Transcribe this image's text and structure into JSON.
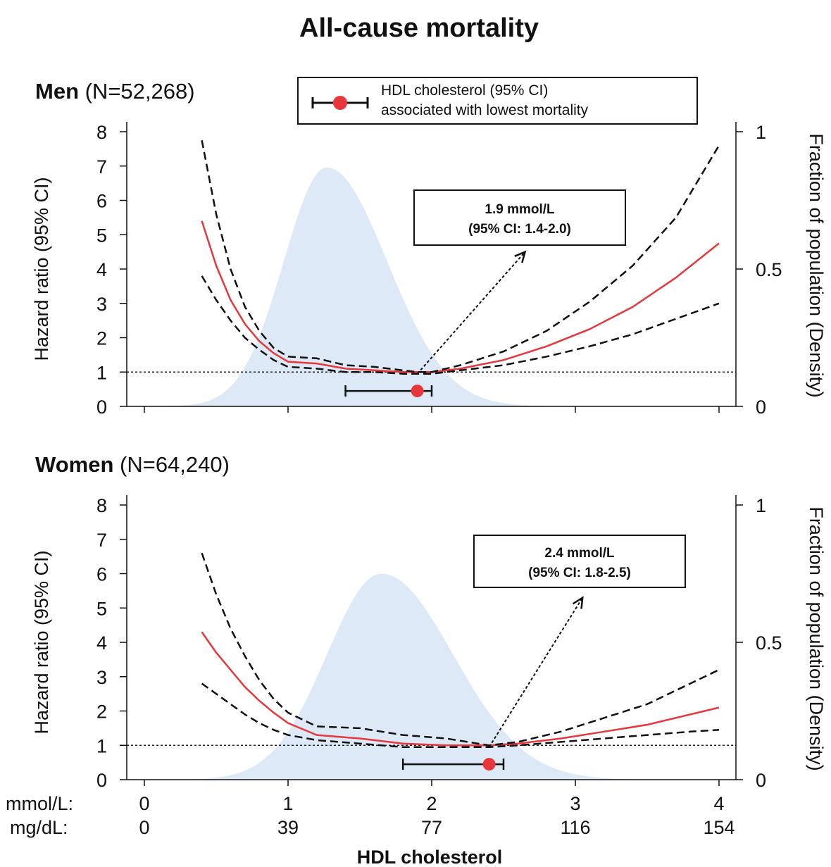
{
  "title": "All-cause mortality",
  "legend": {
    "line1": "HDL cholesterol (95% CI)",
    "line2": "associated with lowest mortality",
    "marker_color": "#e8373c"
  },
  "x_axis": {
    "title": "HDL cholesterol",
    "row_labels": [
      "mmol/L:",
      "mg/dL:"
    ],
    "mmol_ticks": [
      "0",
      "1",
      "2",
      "3",
      "4"
    ],
    "mgdl_ticks": [
      "0",
      "39",
      "77",
      "116",
      "154"
    ]
  },
  "colors": {
    "estimate": "#e8373c",
    "ci": "#111111",
    "density": "#dde9f6",
    "reference": "#222222"
  },
  "chart_data": [
    {
      "type": "line",
      "panel": "men",
      "title_bold": "Men",
      "title_rest": "(N=52,268)",
      "xlim": [
        0,
        4.2
      ],
      "ylim": [
        0,
        8
      ],
      "y2lim": [
        0,
        1
      ],
      "yticks": [
        "0",
        "1",
        "2",
        "3",
        "4",
        "5",
        "6",
        "7",
        "8"
      ],
      "y2ticks": [
        "0",
        "0.5",
        "1"
      ],
      "ylabel": "Hazard ratio (95% CI)",
      "y2label": "Fraction of population (Density)",
      "reference_line": 1,
      "series": [
        {
          "role": "estimate",
          "x": [
            0.4,
            0.5,
            0.6,
            0.7,
            0.8,
            0.9,
            1.0,
            1.2,
            1.4,
            1.6,
            1.8,
            1.9,
            2.0,
            2.2,
            2.5,
            2.8,
            3.1,
            3.4,
            3.7,
            4.0
          ],
          "y": [
            5.4,
            4.1,
            3.1,
            2.4,
            1.9,
            1.55,
            1.3,
            1.25,
            1.1,
            1.05,
            1.0,
            1.0,
            1.0,
            1.1,
            1.35,
            1.75,
            2.25,
            2.9,
            3.75,
            4.75
          ]
        },
        {
          "role": "upper_ci",
          "x": [
            0.4,
            0.5,
            0.6,
            0.7,
            0.8,
            0.9,
            1.0,
            1.2,
            1.4,
            1.6,
            1.8,
            1.9,
            2.0,
            2.2,
            2.5,
            2.8,
            3.1,
            3.4,
            3.7,
            4.0
          ],
          "y": [
            7.75,
            5.6,
            4.0,
            2.9,
            2.2,
            1.7,
            1.45,
            1.4,
            1.2,
            1.15,
            1.05,
            1.0,
            1.0,
            1.2,
            1.6,
            2.2,
            3.05,
            4.1,
            5.5,
            7.6
          ]
        },
        {
          "role": "lower_ci",
          "x": [
            0.4,
            0.5,
            0.6,
            0.7,
            0.8,
            0.9,
            1.0,
            1.2,
            1.4,
            1.6,
            1.8,
            1.9,
            2.0,
            2.2,
            2.5,
            2.8,
            3.1,
            3.4,
            3.7,
            4.0
          ],
          "y": [
            3.8,
            3.1,
            2.5,
            2.0,
            1.65,
            1.35,
            1.15,
            1.1,
            1.0,
            1.0,
            0.95,
            0.95,
            0.95,
            1.05,
            1.2,
            1.45,
            1.75,
            2.1,
            2.55,
            3.0
          ]
        }
      ],
      "density": {
        "mode": 1.27,
        "sigma_left": 0.3,
        "sigma_right": 0.42,
        "peak": 0.87
      },
      "optimum": {
        "value": 1.9,
        "ci_low": 1.4,
        "ci_high": 2.0,
        "y": 0.45
      },
      "annotation": {
        "line1": "1.9 mmol/L",
        "line2": "(95% CI: 1.4-2.0)",
        "arrow_to": [
          2.65,
          4.5
        ]
      }
    },
    {
      "type": "line",
      "panel": "women",
      "title_bold": "Women",
      "title_rest": "(N=64,240)",
      "xlim": [
        0,
        4.2
      ],
      "ylim": [
        0,
        8
      ],
      "y2lim": [
        0,
        1
      ],
      "yticks": [
        "0",
        "1",
        "2",
        "3",
        "4",
        "5",
        "6",
        "7",
        "8"
      ],
      "y2ticks": [
        "0",
        "0.5",
        "1"
      ],
      "ylabel": "Hazard ratio (95% CI)",
      "y2label": "Fraction of population (Density)",
      "reference_line": 1,
      "series": [
        {
          "role": "estimate",
          "x": [
            0.4,
            0.5,
            0.6,
            0.7,
            0.8,
            0.9,
            1.0,
            1.2,
            1.5,
            1.8,
            2.1,
            2.4,
            2.6,
            2.9,
            3.2,
            3.5,
            3.8,
            4.0
          ],
          "y": [
            4.3,
            3.7,
            3.2,
            2.7,
            2.3,
            1.95,
            1.65,
            1.3,
            1.2,
            1.05,
            1.0,
            1.0,
            1.05,
            1.2,
            1.4,
            1.6,
            1.9,
            2.1
          ]
        },
        {
          "role": "upper_ci",
          "x": [
            0.4,
            0.5,
            0.6,
            0.7,
            0.8,
            0.9,
            1.0,
            1.2,
            1.5,
            1.8,
            2.1,
            2.4,
            2.6,
            2.9,
            3.2,
            3.5,
            3.8,
            4.0
          ],
          "y": [
            6.6,
            5.4,
            4.4,
            3.6,
            2.9,
            2.35,
            1.95,
            1.55,
            1.5,
            1.3,
            1.2,
            1.0,
            1.1,
            1.4,
            1.8,
            2.2,
            2.8,
            3.2
          ]
        },
        {
          "role": "lower_ci",
          "x": [
            0.4,
            0.5,
            0.6,
            0.7,
            0.8,
            0.9,
            1.0,
            1.2,
            1.5,
            1.8,
            2.1,
            2.4,
            2.6,
            2.9,
            3.2,
            3.5,
            3.8,
            4.0
          ],
          "y": [
            2.8,
            2.5,
            2.2,
            1.9,
            1.65,
            1.45,
            1.3,
            1.15,
            1.05,
            0.95,
            0.95,
            0.95,
            1.0,
            1.1,
            1.2,
            1.3,
            1.4,
            1.45
          ]
        }
      ],
      "density": {
        "mode": 1.65,
        "sigma_left": 0.38,
        "sigma_right": 0.5,
        "peak": 0.75
      },
      "optimum": {
        "value": 2.4,
        "ci_low": 1.8,
        "ci_high": 2.5,
        "y": 0.45
      },
      "annotation": {
        "line1": "2.4 mmol/L",
        "line2": "(95% CI: 1.8-2.5)",
        "arrow_to": [
          3.05,
          5.3
        ]
      }
    }
  ]
}
